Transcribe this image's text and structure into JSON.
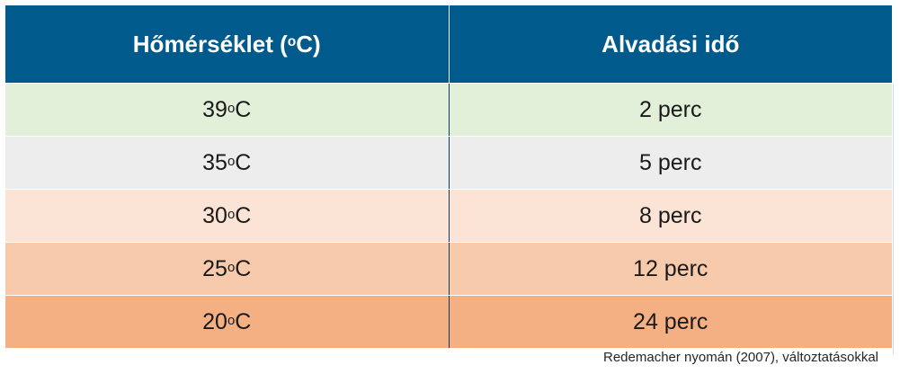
{
  "header": {
    "col1_text": "Hőmérséklet (",
    "col1_sup": "o",
    "col1_tail": "C)",
    "col2": "Alvadási idő"
  },
  "rows": [
    {
      "temp": "39 ",
      "deg": "o",
      "unit": "C",
      "time": "2 perc",
      "color": "#e2f0d9"
    },
    {
      "temp": "35 ",
      "deg": "o",
      "unit": "C",
      "time": "5 perc",
      "color": "#ededed"
    },
    {
      "temp": "30 ",
      "deg": "o",
      "unit": "C",
      "time": "8 perc",
      "color": "#fbe4d6"
    },
    {
      "temp": "25 ",
      "deg": "o",
      "unit": "C",
      "time": "12 perc",
      "color": "#f8caac"
    },
    {
      "temp": "20 ",
      "deg": "o",
      "unit": "C",
      "time": "24 perc",
      "color": "#f4b083"
    }
  ],
  "source": "Redemacher nyomán (2007), változtatásokkal",
  "colors": {
    "header_bg": "#005a8c",
    "header_text": "#ffffff"
  }
}
